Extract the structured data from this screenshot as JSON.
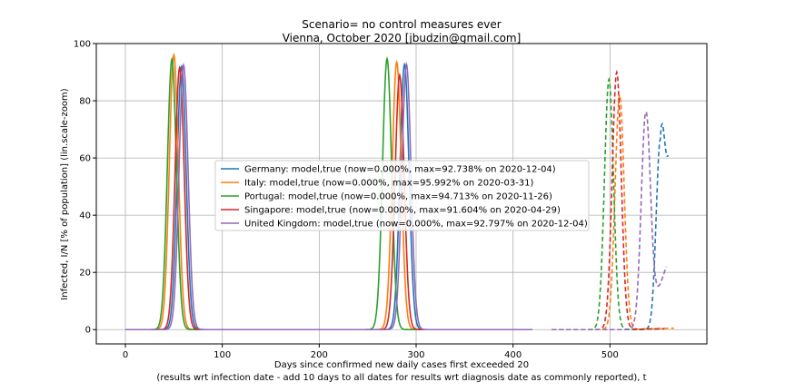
{
  "chart_data": {
    "type": "line",
    "title_line1": "Scenario= no control measures ever",
    "title_line2": "Vienna, October 2020 [jbudzin@gmail.com]",
    "xlabel_line1": "Days since confirmed new daily cases first exceeded 20",
    "xlabel_line2": "(results wrt infection date - add 10 days to all dates for results wrt diagnosis date as commonly reported), t",
    "ylabel": "Infected, I/N [% of population] (lin.scale-zoom)",
    "xlim": [
      -30,
      600
    ],
    "ylim": [
      -5,
      100
    ],
    "xticks": [
      0,
      100,
      200,
      300,
      400,
      500
    ],
    "yticks": [
      0,
      20,
      40,
      60,
      80,
      100
    ],
    "grid": true,
    "legend_position": "center",
    "series": [
      {
        "name": "Germany: model,true (now=0.000%, max=92.738% on 2020-12-04)",
        "color": "#1f77b4",
        "waves": [
          {
            "center": 58,
            "peak": 92.0,
            "width": 11
          },
          {
            "center": 288,
            "peak": 92.7,
            "width": 11
          }
        ],
        "dashed": {
          "center": 552,
          "peak": 66.5,
          "width": 10,
          "x_end": 560,
          "y_end": 61
        }
      },
      {
        "name": "Italy: model,true (now=0.000%, max=95.992% on 2020-03-31)",
        "color": "#ff7f0e",
        "waves": [
          {
            "center": 50,
            "peak": 96.0,
            "width": 11
          },
          {
            "center": 280,
            "peak": 93.5,
            "width": 11
          }
        ],
        "dashed": {
          "center": 510,
          "peak": 82.0,
          "width": 11,
          "x_end": 566,
          "y_end": 0.5
        }
      },
      {
        "name": "Portugal: model,true (now=0.000%, max=94.713% on 2020-11-26)",
        "color": "#2ca02c",
        "waves": [
          {
            "center": 48,
            "peak": 94.5,
            "width": 11
          },
          {
            "center": 270,
            "peak": 94.7,
            "width": 11
          }
        ],
        "dashed": {
          "center": 499,
          "peak": 87.5,
          "width": 11,
          "x_end": 550,
          "y_end": 0.2
        }
      },
      {
        "name": "Singapore: model,true (now=0.000%, max=91.604% on 2020-04-29)",
        "color": "#d62728",
        "waves": [
          {
            "center": 56,
            "peak": 91.6,
            "width": 11
          },
          {
            "center": 283,
            "peak": 89.0,
            "width": 11
          }
        ],
        "dashed": {
          "center": 507,
          "peak": 90.0,
          "width": 11,
          "x_end": 556,
          "y_end": 0.3
        }
      },
      {
        "name": "United Kingdom: model,true (now=0.000%, max=92.797% on 2020-12-04)",
        "color": "#9467bd",
        "waves": [
          {
            "center": 60,
            "peak": 92.5,
            "width": 11
          },
          {
            "center": 290,
            "peak": 92.8,
            "width": 11
          }
        ],
        "dashed": {
          "center": 537,
          "peak": 76.0,
          "width": 11,
          "x_end": 558,
          "y_end": 22
        }
      }
    ]
  }
}
